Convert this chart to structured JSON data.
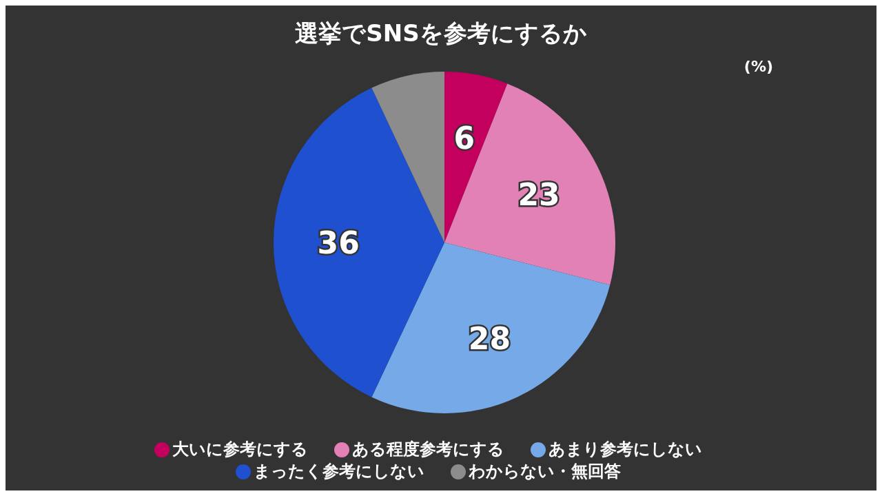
{
  "chart_data": {
    "type": "pie",
    "title": "選挙でSNSを参考にするか",
    "categories": [
      "大いに参考にする",
      "ある程度参考にする",
      "あまり参考にしない",
      "まったく参考にしない",
      "わからない・無回答"
    ],
    "values": [
      6,
      23,
      28,
      36,
      7
    ],
    "colors": [
      "#c4005f",
      "#e281b6",
      "#75a9e7",
      "#1f50d0",
      "#8c8c8c"
    ],
    "value_labels": [
      "6",
      "23",
      "28",
      "36",
      null
    ],
    "annotations": [
      "(%)"
    ],
    "legend": "bottom"
  }
}
